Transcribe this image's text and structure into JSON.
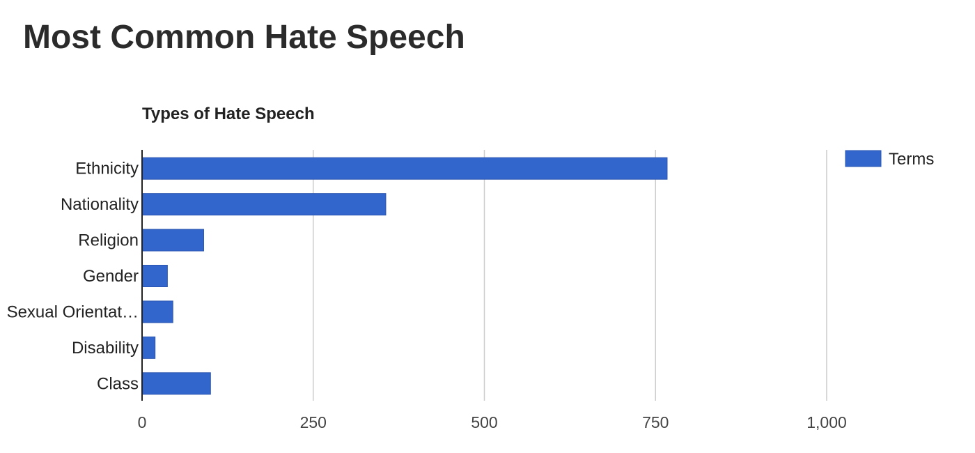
{
  "page": {
    "title": "Most Common Hate Speech"
  },
  "chart_data": {
    "type": "bar",
    "orientation": "horizontal",
    "title": "Types of Hate Speech",
    "categories": [
      "Ethnicity",
      "Nationality",
      "Religion",
      "Gender",
      "Sexual Orientat…",
      "Disability",
      "Class"
    ],
    "series": [
      {
        "name": "Terms",
        "color": "#3366cc",
        "values": [
          767,
          356,
          90,
          37,
          45,
          19,
          100
        ]
      }
    ],
    "xlim": [
      0,
      1000
    ],
    "xticks": [
      0,
      250,
      500,
      750,
      1000
    ],
    "xtick_labels": [
      "0",
      "250",
      "500",
      "750",
      "1,000"
    ],
    "grid": true,
    "legend_position": "right"
  }
}
